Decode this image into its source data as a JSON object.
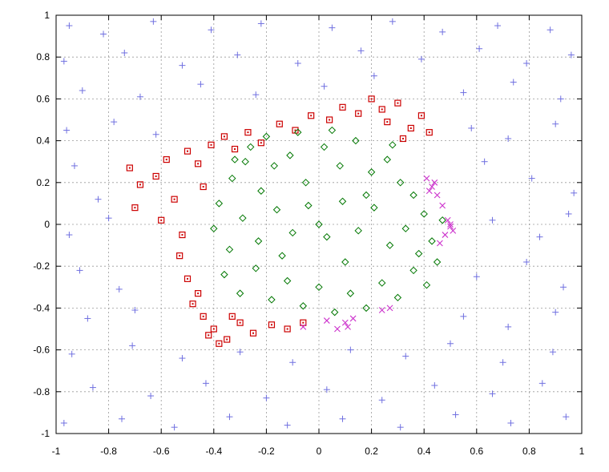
{
  "chart_data": {
    "type": "scatter",
    "title": "",
    "xlabel": "",
    "ylabel": "",
    "xlim": [
      -1,
      1
    ],
    "ylim": [
      -1,
      1
    ],
    "grid": true,
    "legend": "none",
    "x_ticks": [
      "-1",
      "-0.8",
      "-0.6",
      "-0.4",
      "-0.2",
      "0",
      "0.2",
      "0.4",
      "0.6",
      "0.8",
      "1"
    ],
    "y_ticks": [
      "1",
      "0.8",
      "0.6",
      "0.4",
      "0.2",
      "0",
      "-0.2",
      "-0.4",
      "-0.6",
      "-0.8",
      "-1"
    ],
    "series": [
      {
        "marker": "plus",
        "color": "#7070e0",
        "region": "outside ring (|r| > ~0.55)",
        "points": [
          [
            -0.95,
            0.95
          ],
          [
            -0.82,
            0.91
          ],
          [
            -0.63,
            0.97
          ],
          [
            -0.41,
            0.93
          ],
          [
            -0.22,
            0.96
          ],
          [
            0.05,
            0.94
          ],
          [
            0.28,
            0.97
          ],
          [
            0.47,
            0.92
          ],
          [
            0.68,
            0.95
          ],
          [
            0.88,
            0.93
          ],
          [
            -0.97,
            0.78
          ],
          [
            -0.74,
            0.82
          ],
          [
            -0.52,
            0.76
          ],
          [
            -0.31,
            0.81
          ],
          [
            -0.08,
            0.77
          ],
          [
            0.16,
            0.83
          ],
          [
            0.39,
            0.79
          ],
          [
            0.61,
            0.84
          ],
          [
            0.79,
            0.77
          ],
          [
            0.96,
            0.81
          ],
          [
            -0.9,
            0.64
          ],
          [
            -0.68,
            0.61
          ],
          [
            -0.45,
            0.67
          ],
          [
            -0.24,
            0.62
          ],
          [
            0.02,
            0.66
          ],
          [
            0.21,
            0.71
          ],
          [
            0.55,
            0.63
          ],
          [
            0.74,
            0.68
          ],
          [
            0.92,
            0.6
          ],
          [
            -0.96,
            0.45
          ],
          [
            -0.78,
            0.49
          ],
          [
            -0.62,
            0.43
          ],
          [
            0.58,
            0.46
          ],
          [
            0.72,
            0.41
          ],
          [
            0.9,
            0.48
          ],
          [
            -0.93,
            0.28
          ],
          [
            -0.84,
            0.12
          ],
          [
            0.63,
            0.3
          ],
          [
            0.81,
            0.22
          ],
          [
            0.97,
            0.15
          ],
          [
            -0.95,
            -0.05
          ],
          [
            -0.8,
            0.03
          ],
          [
            0.66,
            0.02
          ],
          [
            0.84,
            -0.06
          ],
          [
            0.95,
            0.05
          ],
          [
            -0.91,
            -0.22
          ],
          [
            -0.76,
            -0.31
          ],
          [
            0.6,
            -0.25
          ],
          [
            0.79,
            -0.18
          ],
          [
            0.93,
            -0.3
          ],
          [
            -0.88,
            -0.45
          ],
          [
            -0.7,
            -0.41
          ],
          [
            0.55,
            -0.44
          ],
          [
            0.72,
            -0.49
          ],
          [
            0.9,
            -0.42
          ],
          [
            -0.94,
            -0.62
          ],
          [
            -0.71,
            -0.58
          ],
          [
            -0.52,
            -0.64
          ],
          [
            -0.3,
            -0.61
          ],
          [
            -0.1,
            -0.66
          ],
          [
            0.12,
            -0.6
          ],
          [
            0.33,
            -0.63
          ],
          [
            0.5,
            -0.57
          ],
          [
            0.7,
            -0.66
          ],
          [
            0.89,
            -0.61
          ],
          [
            -0.86,
            -0.78
          ],
          [
            -0.64,
            -0.82
          ],
          [
            -0.43,
            -0.76
          ],
          [
            -0.2,
            -0.83
          ],
          [
            0.03,
            -0.79
          ],
          [
            0.24,
            -0.84
          ],
          [
            0.44,
            -0.77
          ],
          [
            0.66,
            -0.81
          ],
          [
            0.85,
            -0.76
          ],
          [
            -0.97,
            -0.95
          ],
          [
            -0.75,
            -0.93
          ],
          [
            -0.55,
            -0.97
          ],
          [
            -0.34,
            -0.92
          ],
          [
            -0.12,
            -0.96
          ],
          [
            0.09,
            -0.93
          ],
          [
            0.31,
            -0.97
          ],
          [
            0.52,
            -0.91
          ],
          [
            0.73,
            -0.95
          ],
          [
            0.94,
            -0.92
          ]
        ]
      },
      {
        "marker": "square",
        "color": "#cc0000",
        "region": "upper-left / top band",
        "points": [
          [
            -0.72,
            0.27
          ],
          [
            -0.68,
            0.19
          ],
          [
            -0.7,
            0.08
          ],
          [
            -0.62,
            0.23
          ],
          [
            -0.58,
            0.31
          ],
          [
            -0.55,
            0.12
          ],
          [
            -0.6,
            0.02
          ],
          [
            -0.52,
            -0.05
          ],
          [
            -0.5,
            0.35
          ],
          [
            -0.46,
            0.29
          ],
          [
            -0.44,
            0.18
          ],
          [
            -0.41,
            0.38
          ],
          [
            -0.36,
            0.42
          ],
          [
            -0.32,
            0.36
          ],
          [
            -0.27,
            0.44
          ],
          [
            -0.22,
            0.39
          ],
          [
            -0.15,
            0.48
          ],
          [
            -0.09,
            0.45
          ],
          [
            -0.03,
            0.52
          ],
          [
            0.04,
            0.5
          ],
          [
            0.09,
            0.56
          ],
          [
            0.15,
            0.53
          ],
          [
            0.2,
            0.6
          ],
          [
            0.24,
            0.55
          ],
          [
            0.3,
            0.58
          ],
          [
            0.35,
            0.46
          ],
          [
            0.39,
            0.52
          ],
          [
            0.42,
            0.44
          ],
          [
            0.32,
            0.41
          ],
          [
            0.26,
            0.49
          ],
          [
            -0.5,
            -0.26
          ],
          [
            -0.48,
            -0.38
          ],
          [
            -0.44,
            -0.44
          ],
          [
            -0.4,
            -0.5
          ],
          [
            -0.35,
            -0.55
          ],
          [
            -0.3,
            -0.47
          ],
          [
            -0.25,
            -0.52
          ],
          [
            -0.18,
            -0.48
          ],
          [
            -0.12,
            -0.5
          ],
          [
            -0.06,
            -0.47
          ],
          [
            -0.53,
            -0.15
          ],
          [
            -0.46,
            -0.33
          ],
          [
            -0.38,
            -0.57
          ],
          [
            -0.33,
            -0.44
          ],
          [
            -0.42,
            -0.53
          ]
        ]
      },
      {
        "marker": "diamond",
        "color": "#007700",
        "region": "inner disc",
        "points": [
          [
            -0.38,
            0.1
          ],
          [
            -0.33,
            0.22
          ],
          [
            -0.28,
            0.3
          ],
          [
            -0.22,
            0.16
          ],
          [
            -0.17,
            0.28
          ],
          [
            -0.11,
            0.33
          ],
          [
            -0.05,
            0.2
          ],
          [
            0.02,
            0.37
          ],
          [
            0.08,
            0.28
          ],
          [
            0.14,
            0.4
          ],
          [
            0.2,
            0.25
          ],
          [
            0.26,
            0.31
          ],
          [
            0.31,
            0.2
          ],
          [
            0.36,
            0.14
          ],
          [
            0.4,
            0.05
          ],
          [
            -0.4,
            -0.02
          ],
          [
            -0.34,
            -0.12
          ],
          [
            -0.29,
            0.03
          ],
          [
            -0.23,
            -0.08
          ],
          [
            -0.16,
            0.07
          ],
          [
            -0.1,
            -0.04
          ],
          [
            -0.04,
            0.09
          ],
          [
            0.03,
            -0.06
          ],
          [
            0.09,
            0.11
          ],
          [
            0.15,
            -0.03
          ],
          [
            0.21,
            0.08
          ],
          [
            0.27,
            -0.1
          ],
          [
            0.33,
            -0.02
          ],
          [
            0.38,
            -0.14
          ],
          [
            0.43,
            -0.08
          ],
          [
            -0.36,
            -0.24
          ],
          [
            -0.3,
            -0.33
          ],
          [
            -0.24,
            -0.21
          ],
          [
            -0.18,
            -0.36
          ],
          [
            -0.12,
            -0.27
          ],
          [
            -0.06,
            -0.39
          ],
          [
            0.0,
            -0.3
          ],
          [
            0.06,
            -0.42
          ],
          [
            0.12,
            -0.33
          ],
          [
            0.18,
            -0.4
          ],
          [
            0.24,
            -0.28
          ],
          [
            0.3,
            -0.35
          ],
          [
            0.36,
            -0.22
          ],
          [
            0.41,
            -0.29
          ],
          [
            -0.2,
            0.42
          ],
          [
            -0.08,
            0.44
          ],
          [
            0.05,
            0.45
          ],
          [
            0.18,
            0.14
          ],
          [
            -0.26,
            0.37
          ],
          [
            0.45,
            -0.18
          ],
          [
            -0.14,
            -0.15
          ],
          [
            0.1,
            -0.18
          ],
          [
            0.28,
            0.38
          ],
          [
            -0.32,
            0.31
          ],
          [
            0.0,
            0.0
          ],
          [
            0.47,
            0.02
          ]
        ]
      },
      {
        "marker": "x",
        "color": "#cc33cc",
        "region": "right edge and lower arc",
        "points": [
          [
            0.41,
            0.22
          ],
          [
            0.43,
            0.18
          ],
          [
            0.45,
            0.14
          ],
          [
            0.47,
            0.09
          ],
          [
            0.49,
            0.02
          ],
          [
            0.5,
            -0.01
          ],
          [
            0.48,
            -0.05
          ],
          [
            0.51,
            -0.03
          ],
          [
            0.46,
            -0.09
          ],
          [
            0.44,
            0.2
          ],
          [
            0.42,
            0.16
          ],
          [
            0.5,
            0.0
          ],
          [
            -0.06,
            -0.49
          ],
          [
            0.03,
            -0.46
          ],
          [
            0.07,
            -0.5
          ],
          [
            0.1,
            -0.47
          ],
          [
            0.13,
            -0.45
          ],
          [
            0.24,
            -0.41
          ],
          [
            0.27,
            -0.4
          ],
          [
            0.11,
            -0.49
          ]
        ]
      }
    ]
  }
}
